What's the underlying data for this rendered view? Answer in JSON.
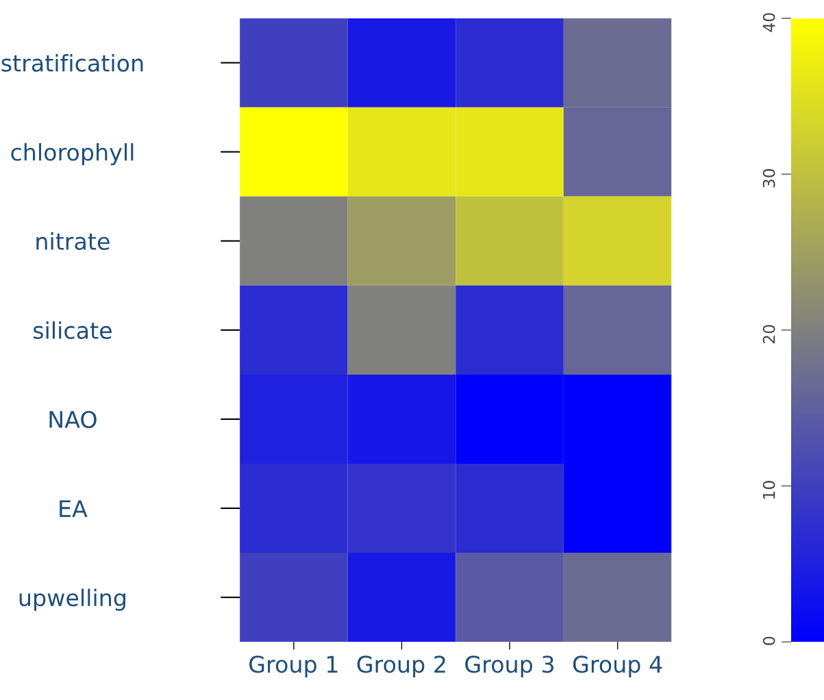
{
  "chart_data": {
    "type": "heatmap",
    "categories": [
      "Group 1",
      "Group 2",
      "Group 3",
      "Group 4"
    ],
    "y_categories": [
      "stratification",
      "chlorophyll",
      "nitrate",
      "silicate",
      "NAO",
      "EA",
      "upwelling"
    ],
    "cells": [
      [
        10,
        4,
        7,
        17
      ],
      [
        40,
        36,
        36,
        16
      ],
      [
        20,
        24.5,
        30,
        33
      ],
      [
        7,
        20,
        7,
        16
      ],
      [
        5,
        3.5,
        0,
        0
      ],
      [
        7,
        8,
        7,
        0
      ],
      [
        10,
        4,
        14,
        17
      ]
    ],
    "clim": [
      0,
      40
    ],
    "cticks": [
      0,
      10,
      20,
      30,
      40
    ]
  }
}
